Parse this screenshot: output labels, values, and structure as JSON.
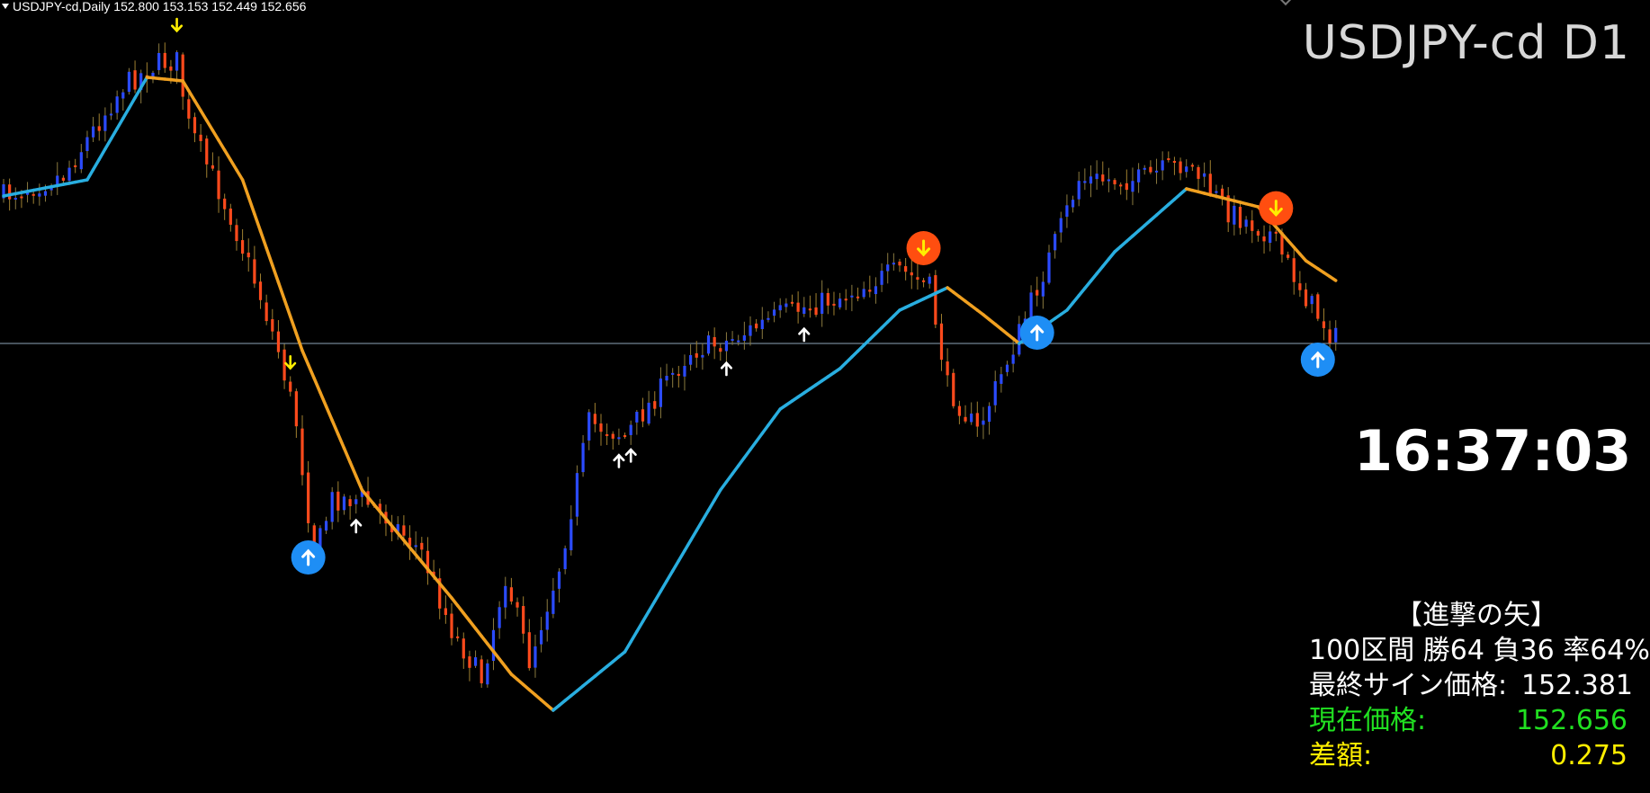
{
  "header": {
    "info": "USDJPY-cd,Daily  152.800 153.153 152.449 152.656",
    "symbol_title": "USDJPY-cd D1"
  },
  "clock": "16:37:03",
  "panel": {
    "title": "【進撃の矢】",
    "stats": "100区間 勝64 負36 率64%",
    "last_sign_label": "最終サイン価格:",
    "last_sign_value": "152.381",
    "current_label": "現在価格:",
    "current_value": "152.656",
    "diff_label": "差額:",
    "diff_value": "0.275"
  },
  "colors": {
    "background": "#000000",
    "bull_candle": "#2b4bff",
    "bear_candle": "#ff4a1c",
    "ma_up": "#29aee0",
    "ma_down": "#f0a020",
    "big_buy": "#1e8ef5",
    "big_sell": "#ff4e10",
    "small_buy_arrow": "#ffffff",
    "small_sell_arrow": "#ffee00",
    "price_line": "#8ea4b8",
    "current_price_text": "#21e021",
    "diff_text": "#ffee00"
  },
  "chart_data": {
    "type": "candlestick",
    "title": "USDJPY-cd D1",
    "timeframe": "Daily",
    "last_bar": {
      "open": 152.8,
      "high": 153.153,
      "low": 152.449,
      "close": 152.656
    },
    "current_price": 152.656,
    "last_sign_price": 152.381,
    "signals": [
      {
        "bar": 29,
        "kind": "small-sell"
      },
      {
        "bar": 48,
        "kind": "small-sell"
      },
      {
        "bar": 51,
        "kind": "big-buy"
      },
      {
        "bar": 59,
        "kind": "small-buy"
      },
      {
        "bar": 103,
        "kind": "small-buy"
      },
      {
        "bar": 105,
        "kind": "small-buy"
      },
      {
        "bar": 121,
        "kind": "small-buy"
      },
      {
        "bar": 134,
        "kind": "small-buy"
      },
      {
        "bar": 154,
        "kind": "big-sell"
      },
      {
        "bar": 173,
        "kind": "big-buy"
      },
      {
        "bar": 213,
        "kind": "big-sell"
      },
      {
        "bar": 220,
        "kind": "big-buy"
      }
    ]
  }
}
